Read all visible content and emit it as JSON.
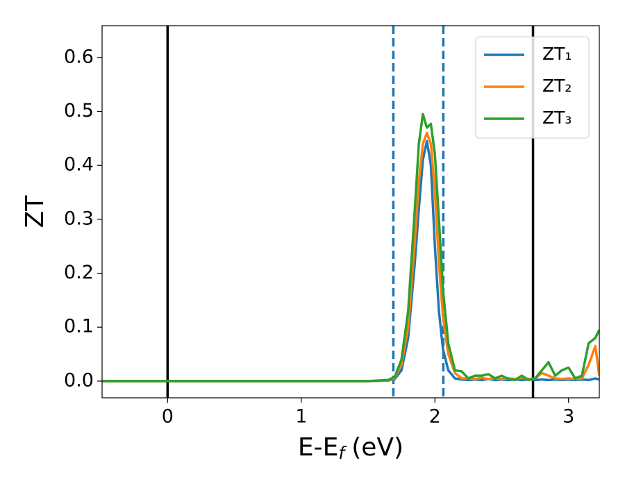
{
  "chart_data": {
    "type": "line",
    "xlabel": {
      "main": "E-E",
      "sub": "f",
      "unit": "(eV)"
    },
    "ylabel": "ZT",
    "xlim": [
      -0.49,
      3.23
    ],
    "ylim": [
      -0.031,
      0.659
    ],
    "xticks": [
      0,
      1,
      2,
      3
    ],
    "yticks": [
      {
        "value": 0,
        "label": "0.0"
      },
      0.1,
      0.2,
      0.3,
      0.4,
      0.5,
      0.6
    ],
    "legend": "upper right",
    "vlines": [
      {
        "x": 0,
        "color": "#000000",
        "style": "solid"
      },
      {
        "x": 2.734,
        "color": "#000000",
        "style": "solid"
      },
      {
        "x": 1.689,
        "color": "#1f77b4",
        "style": "dashed"
      },
      {
        "x": 2.063,
        "color": "#1f77b4",
        "style": "dashed"
      }
    ],
    "x": [
      -0.49,
      0,
      0.5,
      1.0,
      1.5,
      1.65,
      1.7,
      1.75,
      1.8,
      1.85,
      1.88,
      1.91,
      1.94,
      1.97,
      2.0,
      2.03,
      2.06,
      2.1,
      2.15,
      2.2,
      2.25,
      2.3,
      2.35,
      2.4,
      2.45,
      2.5,
      2.55,
      2.6,
      2.65,
      2.7,
      2.75,
      2.8,
      2.85,
      2.9,
      2.95,
      3.0,
      3.05,
      3.1,
      3.15,
      3.2,
      3.23
    ],
    "series": [
      {
        "name": "ZT₁",
        "color": "#1f77b4",
        "values": [
          0,
          0,
          0,
          0,
          0,
          0.001,
          0.004,
          0.02,
          0.08,
          0.22,
          0.32,
          0.41,
          0.445,
          0.4,
          0.25,
          0.13,
          0.06,
          0.02,
          0.005,
          0.003,
          0.002,
          0.003,
          0.002,
          0.004,
          0.002,
          0.003,
          0.002,
          0.003,
          0.002,
          0.003,
          0.002,
          0.003,
          0.002,
          0.003,
          0.002,
          0.003,
          0.002,
          0.003,
          0.002,
          0.005,
          0.003
        ]
      },
      {
        "name": "ZT₂",
        "color": "#ff7f0e",
        "values": [
          0,
          0,
          0,
          0,
          0,
          0.001,
          0.006,
          0.03,
          0.1,
          0.26,
          0.37,
          0.44,
          0.46,
          0.44,
          0.35,
          0.22,
          0.12,
          0.05,
          0.015,
          0.005,
          0.005,
          0.004,
          0.006,
          0.004,
          0.005,
          0.004,
          0.005,
          0.004,
          0.006,
          0.004,
          0.005,
          0.015,
          0.01,
          0.005,
          0.004,
          0.005,
          0.004,
          0.005,
          0.03,
          0.065,
          0.01
        ]
      },
      {
        "name": "ZT₃",
        "color": "#2ca02c",
        "values": [
          0,
          0,
          0,
          0,
          0,
          0.002,
          0.008,
          0.04,
          0.13,
          0.32,
          0.44,
          0.495,
          0.47,
          0.477,
          0.42,
          0.3,
          0.17,
          0.07,
          0.02,
          0.018,
          0.005,
          0.01,
          0.01,
          0.013,
          0.005,
          0.01,
          0.004,
          0.002,
          0.01,
          0.002,
          0.005,
          0.02,
          0.035,
          0.01,
          0.02,
          0.025,
          0.005,
          0.01,
          0.07,
          0.08,
          0.095
        ]
      }
    ]
  }
}
